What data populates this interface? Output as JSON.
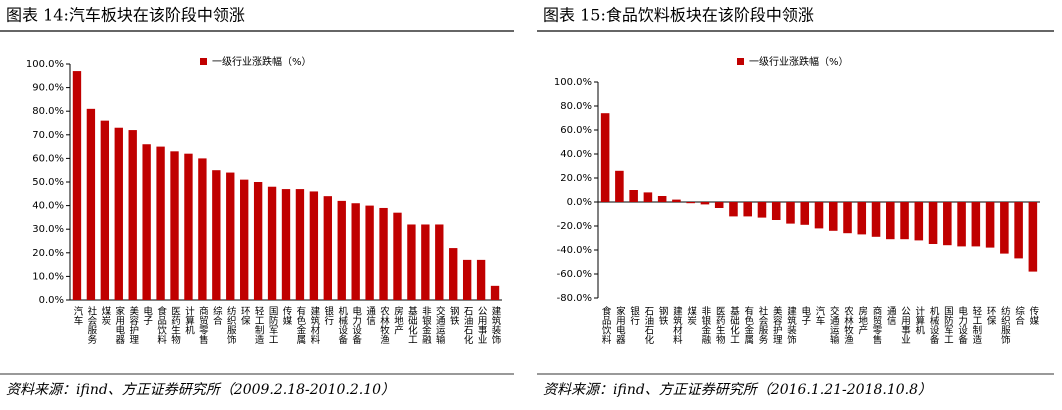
{
  "chart_data": [
    {
      "type": "bar",
      "title": "图表 14:汽车板块在该阶段中领涨",
      "source": "资料来源：ifind、方正证券研究所（2009.2.18-2010.2.10）",
      "categories": [
        "汽车",
        "社会服务",
        "煤炭",
        "家用电器",
        "美容护理",
        "电子",
        "食品饮料",
        "医药生物",
        "计算机",
        "商贸零售",
        "综合",
        "纺织服饰",
        "环保",
        "轻工制造",
        "国防军工",
        "传媒",
        "有色金属",
        "建筑材料",
        "银行",
        "机械设备",
        "电力设备",
        "通信",
        "农林牧渔",
        "房地产",
        "基础化工",
        "非银金融",
        "交通运输",
        "钢铁",
        "石油石化",
        "公用事业",
        "建筑装饰"
      ],
      "series": [
        {
          "name": "一级行业涨跌幅（%）",
          "color": "#c00000",
          "values": [
            97,
            81,
            76,
            73,
            72,
            66,
            65,
            63,
            62,
            60,
            55,
            54,
            51,
            50,
            48,
            47,
            47,
            46,
            44,
            42,
            41,
            40,
            39,
            37,
            32,
            32,
            32,
            22,
            17,
            17,
            6
          ]
        }
      ],
      "ylim": [
        0,
        100
      ],
      "yticks": [
        {
          "value": 0,
          "label": "0.0%"
        },
        {
          "value": 10,
          "label": "10.0%"
        },
        {
          "value": 20,
          "label": "20.0%"
        },
        {
          "value": 30,
          "label": "30.0%"
        },
        {
          "value": 40,
          "label": "40.0%"
        },
        {
          "value": 50,
          "label": "50.0%"
        },
        {
          "value": 60,
          "label": "60.0%"
        },
        {
          "value": 70,
          "label": "70.0%"
        },
        {
          "value": 80,
          "label": "80.0%"
        },
        {
          "value": 90,
          "label": "90.0%"
        },
        {
          "value": 100,
          "label": "100.0%"
        }
      ]
    },
    {
      "type": "bar",
      "title": "图表 15:食品饮料板块在该阶段中领涨",
      "source": "资料来源：ifind、方正证券研究所（2016.1.21-2018.10.8）",
      "categories": [
        "食品饮料",
        "家用电器",
        "银行",
        "石油石化",
        "钢铁",
        "建筑材料",
        "煤炭",
        "非银金融",
        "医药生物",
        "基础化工",
        "有色金属",
        "社会服务",
        "美容护理",
        "建筑装饰",
        "电子",
        "汽车",
        "交通运输",
        "农林牧渔",
        "房地产",
        "商贸零售",
        "通信",
        "公用事业",
        "计算机",
        "机械设备",
        "国防军工",
        "电力设备",
        "轻工制造",
        "环保",
        "纺织服饰",
        "综合",
        "传媒"
      ],
      "series": [
        {
          "name": "一级行业涨跌幅（%）",
          "color": "#c00000",
          "values": [
            74,
            26,
            10,
            8,
            5,
            2,
            -1,
            -2,
            -5,
            -12,
            -12,
            -13,
            -15,
            -18,
            -19,
            -22,
            -24,
            -26,
            -27,
            -29,
            -31,
            -31,
            -32,
            -35,
            -36,
            -37,
            -37,
            -38,
            -43,
            -47,
            -58
          ]
        }
      ],
      "ylim": [
        -80,
        100
      ],
      "yticks": [
        {
          "value": -80,
          "label": "-80.0%"
        },
        {
          "value": -60,
          "label": "-60.0%"
        },
        {
          "value": -40,
          "label": "-40.0%"
        },
        {
          "value": -20,
          "label": "-20.0%"
        },
        {
          "value": 0,
          "label": "0.0%"
        },
        {
          "value": 20,
          "label": "20.0%"
        },
        {
          "value": 40,
          "label": "40.0%"
        },
        {
          "value": 60,
          "label": "60.0%"
        },
        {
          "value": 80,
          "label": "80.0%"
        },
        {
          "value": 100,
          "label": "100.0%"
        }
      ]
    }
  ]
}
